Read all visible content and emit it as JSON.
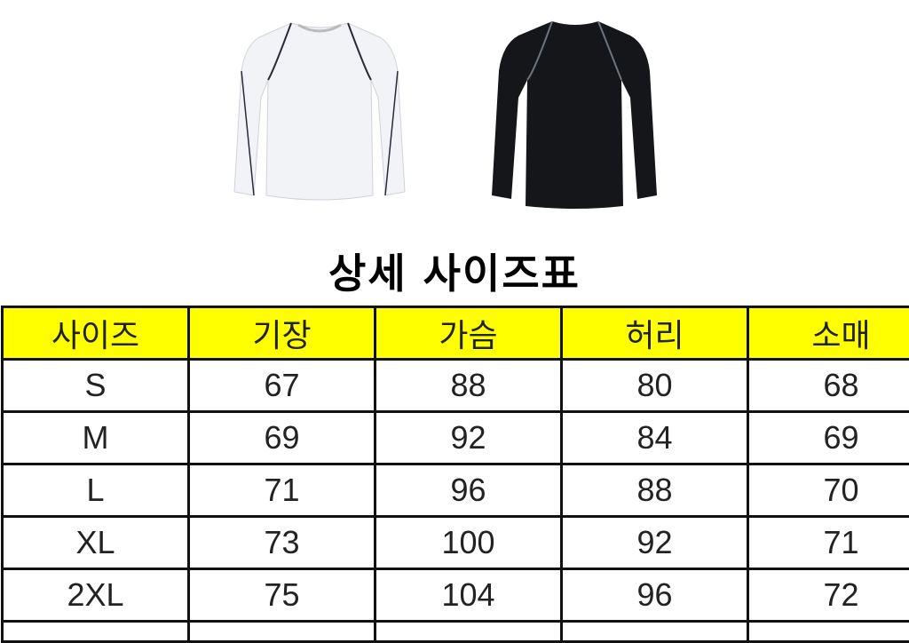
{
  "products": [
    {
      "name": "white-shirt",
      "color": "#f2f3f7",
      "trim": "#2a2a3a"
    },
    {
      "name": "black-shirt",
      "color": "#15161a",
      "trim": "#6a7480"
    }
  ],
  "title": "상세 사이즈표",
  "table": {
    "header_color": "#ffff00",
    "headers": [
      "사이즈",
      "기장",
      "가슴",
      "허리",
      "소매"
    ],
    "rows": [
      [
        "S",
        "67",
        "88",
        "80",
        "68"
      ],
      [
        "M",
        "69",
        "92",
        "84",
        "69"
      ],
      [
        "L",
        "71",
        "96",
        "88",
        "70"
      ],
      [
        "XL",
        "73",
        "100",
        "92",
        "71"
      ],
      [
        "2XL",
        "75",
        "104",
        "96",
        "72"
      ]
    ]
  }
}
